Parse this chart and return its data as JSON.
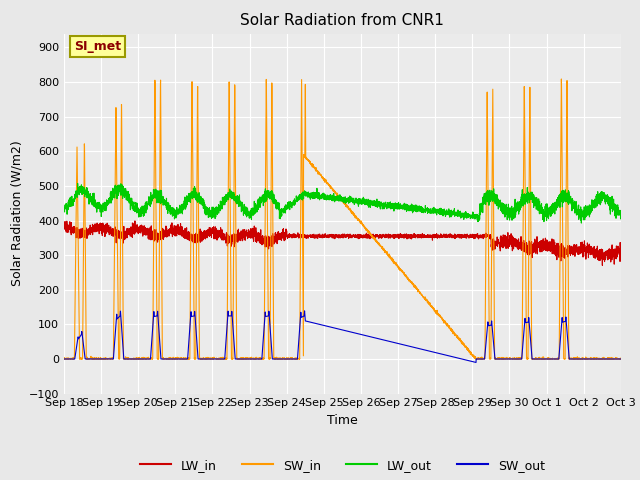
{
  "title": "Solar Radiation from CNR1",
  "xlabel": "Time",
  "ylabel": "Solar Radiation (W/m2)",
  "ylim": [
    -100,
    940
  ],
  "yticks": [
    -100,
    0,
    100,
    200,
    300,
    400,
    500,
    600,
    700,
    800,
    900
  ],
  "background_color": "#e8e8e8",
  "plot_bg_color": "#ebebeb",
  "annotation_label": "SI_met",
  "annotation_color": "#8B0000",
  "annotation_bg": "#ffff99",
  "colors": {
    "LW_in": "#cc0000",
    "SW_in": "#ff9900",
    "LW_out": "#00cc00",
    "SW_out": "#0000cc"
  },
  "x_tick_labels": [
    "Sep 18",
    "Sep 19",
    "Sep 20",
    "Sep 21",
    "Sep 22",
    "Sep 23",
    "Sep 24",
    "Sep 25",
    "Sep 26",
    "Sep 27",
    "Sep 28",
    "Sep 29",
    "Sep 30",
    "Oct 1",
    "Oct 2",
    "Oct 3"
  ],
  "x_tick_positions": [
    0,
    1,
    2,
    3,
    4,
    5,
    6,
    7,
    8,
    9,
    10,
    11,
    12,
    13,
    14,
    15
  ],
  "figsize": [
    6.4,
    4.8
  ],
  "dpi": 100
}
